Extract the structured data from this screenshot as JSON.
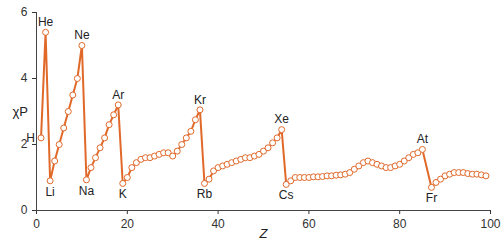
{
  "chart_data": {
    "type": "line",
    "x_label": "Z",
    "y_label": "χP",
    "xlim": [
      0,
      100
    ],
    "xticks": [
      0,
      20,
      40,
      60,
      80,
      100
    ],
    "ylim": [
      0,
      6
    ],
    "yticks": [
      0,
      2,
      4,
      6
    ],
    "grid": false,
    "color": "#e0692a",
    "marker": "circle",
    "x": [
      1,
      2,
      3,
      4,
      5,
      6,
      7,
      8,
      9,
      10,
      11,
      12,
      13,
      14,
      15,
      16,
      17,
      18,
      19,
      20,
      21,
      22,
      23,
      24,
      25,
      26,
      27,
      28,
      29,
      30,
      31,
      32,
      33,
      34,
      35,
      36,
      37,
      38,
      39,
      40,
      41,
      42,
      43,
      44,
      45,
      46,
      47,
      48,
      49,
      50,
      51,
      52,
      53,
      54,
      55,
      56,
      57,
      58,
      59,
      60,
      61,
      62,
      63,
      64,
      65,
      66,
      67,
      68,
      69,
      70,
      71,
      72,
      73,
      74,
      75,
      76,
      77,
      78,
      79,
      80,
      81,
      82,
      83,
      84,
      85,
      87,
      88,
      89,
      90,
      91,
      92,
      93,
      94,
      95,
      96,
      97,
      98,
      99
    ],
    "values": [
      2.2,
      5.4,
      0.9,
      1.5,
      2.0,
      2.5,
      3.0,
      3.5,
      4.0,
      5.0,
      0.93,
      1.3,
      1.6,
      1.9,
      2.2,
      2.6,
      2.9,
      3.2,
      0.82,
      1.0,
      1.3,
      1.45,
      1.55,
      1.6,
      1.6,
      1.65,
      1.7,
      1.75,
      1.75,
      1.65,
      1.8,
      2.0,
      2.2,
      2.4,
      2.75,
      3.05,
      0.82,
      0.95,
      1.2,
      1.3,
      1.35,
      1.4,
      1.45,
      1.5,
      1.55,
      1.6,
      1.6,
      1.65,
      1.7,
      1.8,
      1.9,
      2.05,
      2.2,
      2.45,
      0.79,
      0.9,
      1.0,
      1.0,
      1.0,
      1.0,
      1.02,
      1.02,
      1.03,
      1.05,
      1.05,
      1.07,
      1.08,
      1.1,
      1.15,
      1.25,
      1.35,
      1.45,
      1.5,
      1.45,
      1.4,
      1.35,
      1.3,
      1.3,
      1.35,
      1.4,
      1.5,
      1.6,
      1.7,
      1.75,
      1.85,
      0.7,
      0.85,
      0.95,
      1.05,
      1.1,
      1.15,
      1.15,
      1.15,
      1.12,
      1.1,
      1.1,
      1.08,
      1.05
    ],
    "annotations": [
      {
        "text": "H",
        "x": 1
      },
      {
        "text": "He",
        "x": 2
      },
      {
        "text": "Li",
        "x": 3
      },
      {
        "text": "Ne",
        "x": 10
      },
      {
        "text": "Na",
        "x": 11
      },
      {
        "text": "Ar",
        "x": 18
      },
      {
        "text": "K",
        "x": 19
      },
      {
        "text": "Kr",
        "x": 36
      },
      {
        "text": "Rb",
        "x": 37
      },
      {
        "text": "Xe",
        "x": 54
      },
      {
        "text": "Cs",
        "x": 55
      },
      {
        "text": "At",
        "x": 85
      },
      {
        "text": "Fr",
        "x": 87
      }
    ]
  }
}
